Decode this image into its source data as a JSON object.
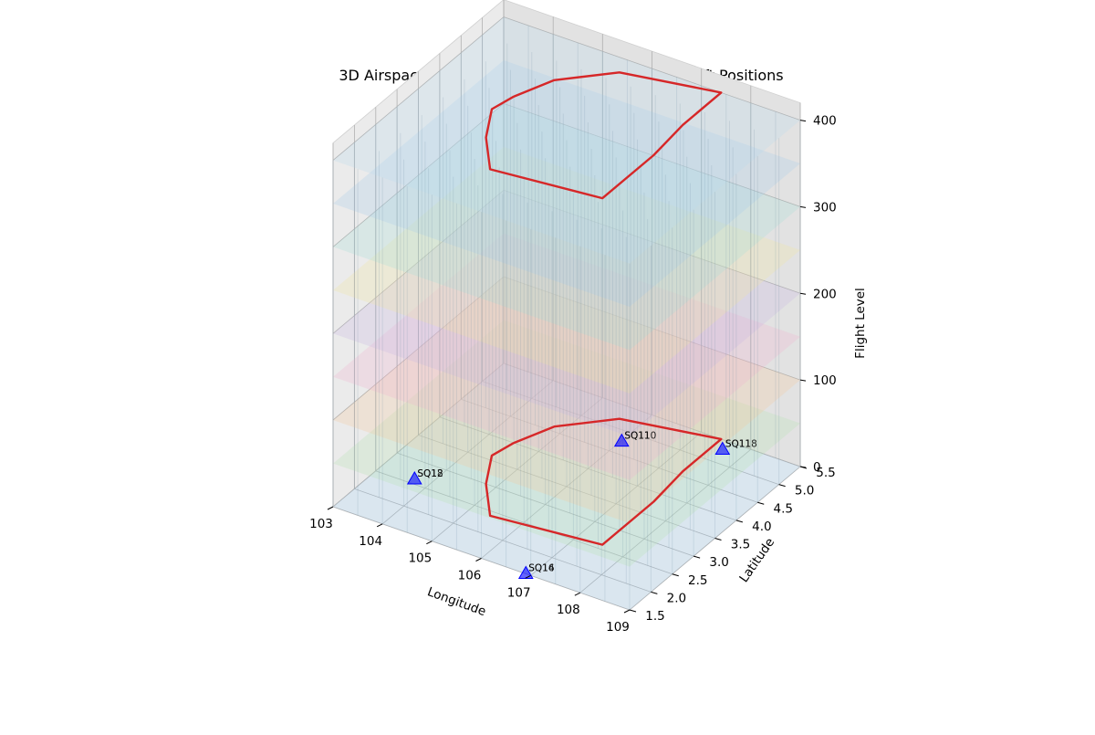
{
  "chart_data": {
    "type": "scatter",
    "title": "3D Airspace Grid with Sector Boundary and Aircraft Positions",
    "xlabel": "Longitude",
    "ylabel": "Latitude",
    "zlabel": "Flight Level",
    "xlim": [
      103,
      109
    ],
    "ylim": [
      1.5,
      5.5
    ],
    "zlim": [
      0,
      420
    ],
    "xticks": [
      "103",
      "104",
      "105",
      "106",
      "107",
      "108",
      "109"
    ],
    "yticks": [
      "1.5",
      "2.0",
      "2.5",
      "3.0",
      "3.5",
      "4.0",
      "4.5",
      "5.0",
      "5.5"
    ],
    "zticks": [
      "0",
      "100",
      "200",
      "300",
      "400"
    ],
    "grid": true,
    "grid_layers": {
      "flight_levels": [
        0,
        50,
        100,
        150,
        200,
        250,
        300,
        350,
        400
      ],
      "colors": [
        "#9ec9ea",
        "#b7e3b3",
        "#f6c89e",
        "#f2b4cf",
        "#c9b8e3",
        "#f1e6a0",
        "#a8e0d8",
        "#a9cde8",
        "#b9dced"
      ]
    },
    "sector_boundary": {
      "color": "#d62728",
      "levels": [
        0,
        400
      ],
      "points": [
        [
          104.5,
          4.0
        ],
        [
          104.8,
          4.6
        ],
        [
          105.6,
          5.2
        ],
        [
          107.4,
          5.5
        ],
        [
          107.4,
          4.6
        ],
        [
          107.5,
          3.8
        ],
        [
          107.5,
          2.6
        ],
        [
          105.4,
          2.4
        ],
        [
          104.8,
          3.0
        ],
        [
          104.4,
          3.6
        ],
        [
          104.5,
          4.0
        ]
      ]
    },
    "aircraft": [
      {
        "x": 103.7,
        "y": 2.6,
        "z": 0,
        "labels": [
          "SQ12",
          "SQ18"
        ]
      },
      {
        "x": 106.9,
        "y": 1.5,
        "z": 0,
        "labels": [
          "SQ16",
          "SQ14"
        ]
      },
      {
        "x": 107.2,
        "y": 3.4,
        "z": 80,
        "labels": [
          "SQ110",
          "SQ11"
        ]
      },
      {
        "x": 107.6,
        "y": 5.3,
        "z": 0,
        "labels": [
          "SQ118",
          "SQ11"
        ]
      }
    ],
    "marker_color": "#0000ff"
  }
}
